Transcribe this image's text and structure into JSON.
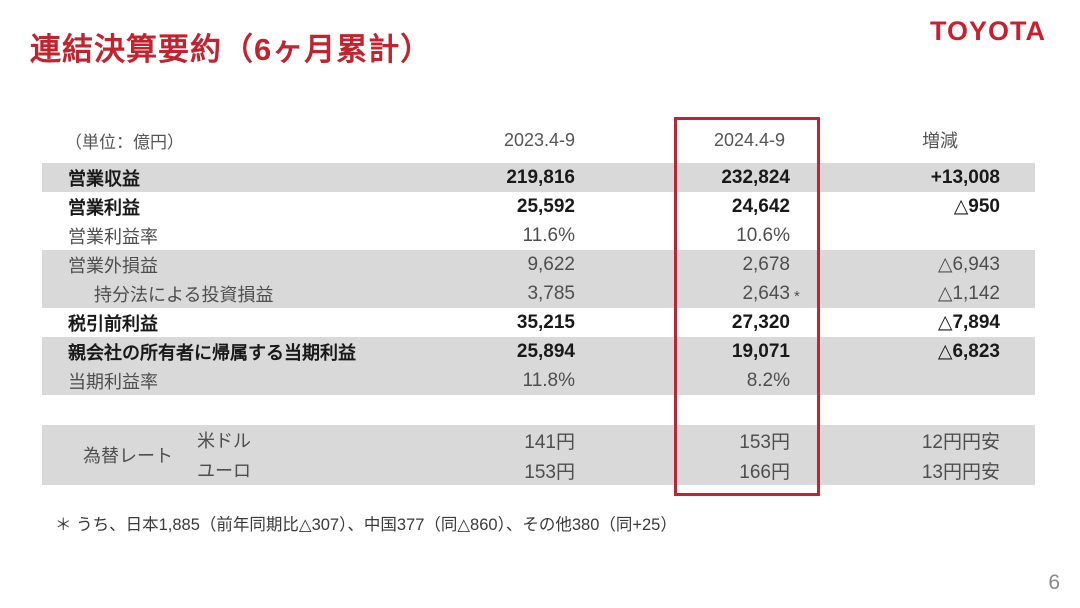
{
  "slide": {
    "title": "連結決算要約（6ヶ月累計）",
    "logo": "TOYOTA",
    "footnote": "＊ うち、日本1,885（前年同期比△307）、中国377（同△860）、その他380（同+25）",
    "page_number": "6"
  },
  "colors": {
    "brand_red": "#c2232e",
    "highlight_box_red": "#bf2433",
    "row_shading_gray": "#d9d9d9",
    "bold_text": "#191919",
    "normal_text": "#4e4e4e"
  },
  "table": {
    "unit_label": "（単位：億円）",
    "columns": {
      "prior": "2023.4-9",
      "current": "2024.4-9",
      "change": "増減"
    },
    "rows": [
      {
        "label": "営業収益",
        "y2023": "219,816",
        "y2024": "232,824",
        "change": "+13,008"
      },
      {
        "label": "営業利益",
        "y2023": "25,592",
        "y2024": "24,642",
        "change": "△950"
      },
      {
        "label": "営業利益率",
        "y2023": "11.6%",
        "y2024": "10.6%",
        "change": ""
      },
      {
        "label": "営業外損益",
        "y2023": "9,622",
        "y2024": "2,678",
        "change": "△6,943"
      },
      {
        "label": "持分法による投資損益",
        "y2023": "3,785",
        "y2024": "2,643",
        "asterisk": "*",
        "change": "△1,142"
      },
      {
        "label": "税引前利益",
        "y2023": "35,215",
        "y2024": "27,320",
        "change": "△7,894"
      },
      {
        "label": "親会社の所有者に帰属する当期利益",
        "y2023": "25,894",
        "y2024": "19,071",
        "change": "△6,823"
      },
      {
        "label": "当期利益率",
        "y2023": "11.8%",
        "y2024": "8.2%",
        "change": ""
      }
    ],
    "fx": {
      "label": "為替レート",
      "rows": [
        {
          "currency": "米ドル",
          "y2023": "141円",
          "y2024": "153円",
          "change": "12円円安"
        },
        {
          "currency": "ユーロ",
          "y2023": "153円",
          "y2024": "166円",
          "change": "13円円安"
        }
      ]
    }
  }
}
